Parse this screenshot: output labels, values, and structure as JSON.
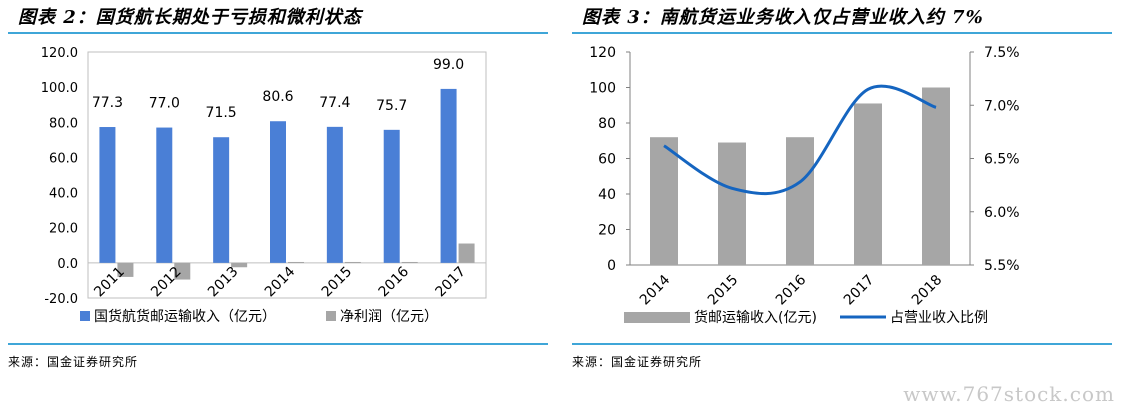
{
  "left_panel": {
    "title": "图表 2：国货航长期处于亏损和微利状态",
    "source": "来源：国金证券研究所"
  },
  "right_panel": {
    "title": "图表 3：南航货运业务收入仅占营业收入约 7%",
    "source": "来源：国金证券研究所"
  },
  "watermark": "www.767stock.com",
  "colors": {
    "blue": "#4a7fd6",
    "gray": "#a6a6a6",
    "line": "#1565c0",
    "rule": "#3fa6d8"
  },
  "chart_data": [
    {
      "type": "bar",
      "categories": [
        "2011",
        "2012",
        "2013",
        "2014",
        "2015",
        "2016",
        "2017"
      ],
      "series": [
        {
          "name": "国货航货邮运输收入（亿元）",
          "values": [
            77.3,
            77.0,
            71.5,
            80.6,
            77.4,
            75.7,
            99.0
          ],
          "data_labels": [
            "77.3",
            "77.0",
            "71.5",
            "80.6",
            "77.4",
            "75.7",
            "99.0"
          ]
        },
        {
          "name": "净利润（亿元）",
          "values": [
            -8.0,
            -9.5,
            -2.5,
            0.5,
            0.5,
            0.5,
            11.0
          ]
        }
      ],
      "ylim": [
        -20,
        120
      ],
      "yticks": [
        "-20.0",
        "0.0",
        "20.0",
        "40.0",
        "60.0",
        "80.0",
        "100.0",
        "120.0"
      ],
      "ytick_values": [
        -20,
        0,
        20,
        40,
        60,
        80,
        100,
        120
      ],
      "legend_position": "bottom"
    },
    {
      "type": "bar",
      "categories": [
        "2014",
        "2015",
        "2016",
        "2017",
        "2018"
      ],
      "series": [
        {
          "name": "货邮运输收入(亿元)",
          "type": "bar",
          "axis": "left",
          "values": [
            72,
            69,
            72,
            91,
            100
          ]
        },
        {
          "name": "占营业收入比例",
          "type": "line",
          "axis": "right",
          "values": [
            6.62,
            6.22,
            6.28,
            7.15,
            6.98
          ]
        }
      ],
      "ylim_left": [
        0,
        120
      ],
      "yticks_left": [
        "0",
        "20",
        "40",
        "60",
        "80",
        "100",
        "120"
      ],
      "ytick_values_left": [
        0,
        20,
        40,
        60,
        80,
        100,
        120
      ],
      "ylim_right": [
        5.5,
        7.5
      ],
      "yticks_right": [
        "5.5%",
        "6.0%",
        "6.5%",
        "7.0%",
        "7.5%"
      ],
      "ytick_values_right": [
        5.5,
        6.0,
        6.5,
        7.0,
        7.5
      ],
      "legend_position": "bottom"
    }
  ]
}
